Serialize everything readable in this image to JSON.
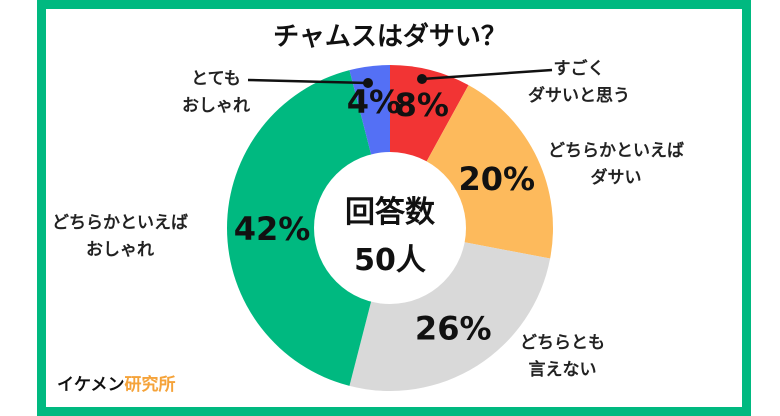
{
  "chart_data": {
    "type": "pie",
    "donut": true,
    "title": "チャムスはダサい？",
    "center_label": [
      "回答数",
      "50人"
    ],
    "start": "top",
    "direction": "clockwise",
    "slices": [
      {
        "label": "すごくダサいと思う",
        "value": 8,
        "display": "8%",
        "color": "#f23434"
      },
      {
        "label": "どちらかといえばダサい",
        "value": 20,
        "display": "20%",
        "color": "#fdba5c"
      },
      {
        "label": "どちらとも言えない",
        "value": 26,
        "display": "26%",
        "color": "#d9d9d9"
      },
      {
        "label": "どちらかといえばおしゃれ",
        "value": 42,
        "display": "42%",
        "color": "#00b980"
      },
      {
        "label": "とてもおしゃれ",
        "value": 4,
        "display": "4%",
        "color": "#5470f5"
      }
    ]
  },
  "labels": {
    "very_dasai": [
      "すごく",
      "ダサいと思う"
    ],
    "somewhat_dasai": [
      "どちらかといえば",
      "ダサい"
    ],
    "neutral": [
      "どちらとも",
      "言えない"
    ],
    "somewhat_oshare": [
      "どちらかといえば",
      "おしゃれ"
    ],
    "very_oshare": [
      "とても",
      "おしゃれ"
    ]
  },
  "brand": {
    "part1": "イケメン",
    "part2": "研究所"
  },
  "colors": {
    "frame": "#00b980",
    "brand_accent": "#f5a33a"
  }
}
